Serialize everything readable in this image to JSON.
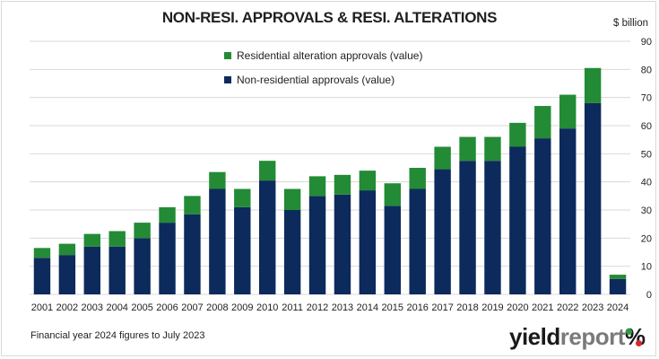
{
  "header": {
    "title": "NON-RESI. APPROVALS & RESI. ALTERATIONS",
    "unit": "$ billion"
  },
  "footer": {
    "note": "Financial year 2024 figures to July 2023",
    "logo_part1": "yield",
    "logo_part2": "report",
    "logo_symbol": "%"
  },
  "colors": {
    "non_residential": "#0d2a5c",
    "residential_alteration": "#238b35",
    "grid": "#d9d9d9",
    "logo_green": "#2e9e3e",
    "logo_red": "#d9262d"
  },
  "chart_data": {
    "type": "bar",
    "stacked": true,
    "title": "NON-RESI. APPROVALS & RESI. ALTERATIONS",
    "ylabel": "$ billion",
    "yaxis_position": "right",
    "ylim": [
      0,
      90
    ],
    "yticks": [
      0,
      10,
      20,
      30,
      40,
      50,
      60,
      70,
      80,
      90
    ],
    "grid": true,
    "legend_placement": "top-center",
    "categories": [
      "2001",
      "2002",
      "2003",
      "2004",
      "2005",
      "2006",
      "2007",
      "2008",
      "2009",
      "2010",
      "2011",
      "2012",
      "2013",
      "2014",
      "2015",
      "2016",
      "2017",
      "2018",
      "2019",
      "2020",
      "2021",
      "2022",
      "2023",
      "2024"
    ],
    "series": [
      {
        "name": "Non-residential approvals (value)",
        "color": "#0d2a5c",
        "values": [
          13,
          14,
          17,
          17,
          20,
          25.5,
          28.5,
          37.5,
          31,
          40.5,
          30,
          35,
          35.5,
          37,
          31.5,
          37.5,
          44.5,
          47.5,
          47.5,
          52.5,
          55.5,
          59,
          68,
          5.5
        ]
      },
      {
        "name": "Residential alteration approvals (value)",
        "color": "#238b35",
        "values": [
          3.5,
          4,
          4.5,
          5.5,
          5.5,
          5.5,
          6.5,
          6,
          6.5,
          7,
          7.5,
          7,
          7,
          7,
          8,
          7.5,
          8,
          8.5,
          8.5,
          8.5,
          11.5,
          12,
          12.5,
          1.5
        ]
      }
    ],
    "legend": [
      {
        "label": "Residential alteration approvals (value)",
        "color": "#238b35"
      },
      {
        "label": "Non-residential approvals (value)",
        "color": "#0d2a5c"
      }
    ]
  }
}
